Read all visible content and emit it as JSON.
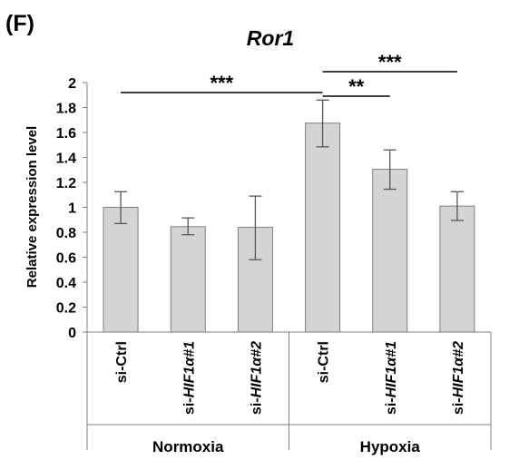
{
  "panel_label": "(F)",
  "chart_data": {
    "type": "bar",
    "title": "Ror1",
    "ylabel": "Relative expression level",
    "ylim": [
      0,
      2
    ],
    "yticks": [
      "0",
      "0.2",
      "0.4",
      "0.6",
      "0.8",
      "1",
      "1.2",
      "1.4",
      "1.6",
      "1.8",
      "2"
    ],
    "categories": [
      "si-Ctrl",
      "si-HIF1α#1",
      "si-HIF1α#2",
      "si-Ctrl",
      "si-HIF1α#1",
      "si-HIF1α#2"
    ],
    "category_labels": [
      {
        "prefix": "si-",
        "gene": "",
        "suffix": "Ctrl"
      },
      {
        "prefix": "si-",
        "gene": "HIF1",
        "suffix": "α#1"
      },
      {
        "prefix": "si-",
        "gene": "HIF1",
        "suffix": "α#2"
      },
      {
        "prefix": "si-",
        "gene": "",
        "suffix": "Ctrl"
      },
      {
        "prefix": "si-",
        "gene": "HIF1",
        "suffix": "α#1"
      },
      {
        "prefix": "si-",
        "gene": "HIF1",
        "suffix": "α#2"
      }
    ],
    "groups": [
      {
        "name": "Normoxia",
        "categories": [
          0,
          1,
          2
        ]
      },
      {
        "name": "Hypoxia",
        "categories": [
          3,
          4,
          5
        ]
      }
    ],
    "values": [
      1.0,
      0.845,
      0.84,
      1.675,
      1.305,
      1.01
    ],
    "error_low": [
      0.87,
      0.78,
      0.58,
      1.485,
      1.145,
      0.895
    ],
    "error_high": [
      1.125,
      0.915,
      1.09,
      1.86,
      1.46,
      1.125
    ],
    "bar_color": "#d4d4d4",
    "bar_edge_color": "#7f7f7f",
    "significance": [
      {
        "from": 0,
        "to": 3,
        "label": "***"
      },
      {
        "from": 3,
        "to": 4,
        "label": "**"
      },
      {
        "from": 3,
        "to": 5,
        "label": "***"
      }
    ],
    "grid": false,
    "legend": "none"
  }
}
